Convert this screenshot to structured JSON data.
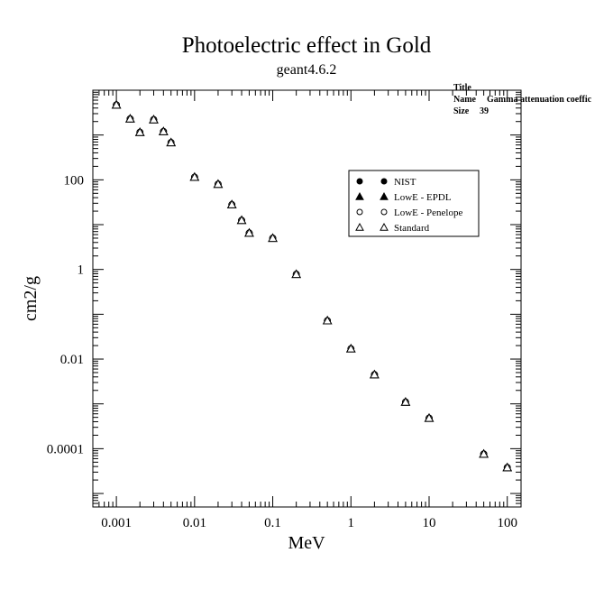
{
  "chart_data": {
    "type": "scatter",
    "title": "Photoelectric effect in Gold",
    "subtitle": "geant4.6.2",
    "xlabel": "MeV",
    "ylabel": "cm2/g",
    "xscale": "log",
    "yscale": "log",
    "xlim": [
      0.0005,
      150
    ],
    "ylim": [
      5e-06,
      10000
    ],
    "x_ticks": [
      {
        "value": 0.001,
        "label": "0.001"
      },
      {
        "value": 0.01,
        "label": "0.01"
      },
      {
        "value": 0.1,
        "label": "0.1"
      },
      {
        "value": 1,
        "label": "1"
      },
      {
        "value": 10,
        "label": "10"
      },
      {
        "value": 100,
        "label": "100"
      }
    ],
    "y_ticks": [
      {
        "value": 0.0001,
        "label": "0.0001"
      },
      {
        "value": 0.01,
        "label": "0.01"
      },
      {
        "value": 1,
        "label": "1"
      },
      {
        "value": 100,
        "label": "100"
      }
    ],
    "legend_position": "top-right",
    "x": [
      0.001,
      0.0015,
      0.002,
      0.003,
      0.004,
      0.005,
      0.01,
      0.02,
      0.03,
      0.04,
      0.05,
      0.1,
      0.2,
      0.5,
      1,
      2,
      5,
      10,
      50,
      100
    ],
    "series": [
      {
        "name": "NIST",
        "marker": "filled-circle",
        "values": [
          4700,
          2300,
          1150,
          2200,
          1200,
          680,
          115,
          80,
          28,
          12.5,
          6.5,
          5.0,
          0.78,
          0.072,
          0.017,
          0.0045,
          0.0011,
          0.00048,
          7.6e-05,
          3.8e-05
        ]
      },
      {
        "name": "LowE - EPDL",
        "marker": "filled-triangle",
        "values": [
          4700,
          2300,
          1150,
          2200,
          1200,
          680,
          115,
          80,
          28,
          12.5,
          6.5,
          5.0,
          0.78,
          0.072,
          0.017,
          0.0045,
          0.0011,
          0.00048,
          7.6e-05,
          3.8e-05
        ]
      },
      {
        "name": "LowE - Penelope",
        "marker": "open-circle",
        "values": [
          4700,
          2300,
          1150,
          2200,
          1200,
          680,
          115,
          80,
          28,
          12.5,
          6.5,
          5.0,
          0.78,
          0.072,
          0.017,
          0.0045,
          0.0011,
          0.00048,
          7.6e-05,
          3.8e-05
        ]
      },
      {
        "name": "Standard",
        "marker": "open-triangle",
        "values": [
          4700,
          2300,
          1150,
          2200,
          1200,
          680,
          115,
          80,
          28,
          12.5,
          6.5,
          5.0,
          0.78,
          0.072,
          0.017,
          0.0045,
          0.0011,
          0.00048,
          7.6e-05,
          3.8e-05
        ]
      }
    ],
    "stats_box": {
      "title": "Title",
      "name_label": "Name",
      "name_value": "Gamma attenuation coeffic",
      "size_label": "Size",
      "size_value": "39"
    }
  },
  "colors": {
    "axis": "#000000",
    "background": "#ffffff",
    "markers": "#000000"
  }
}
